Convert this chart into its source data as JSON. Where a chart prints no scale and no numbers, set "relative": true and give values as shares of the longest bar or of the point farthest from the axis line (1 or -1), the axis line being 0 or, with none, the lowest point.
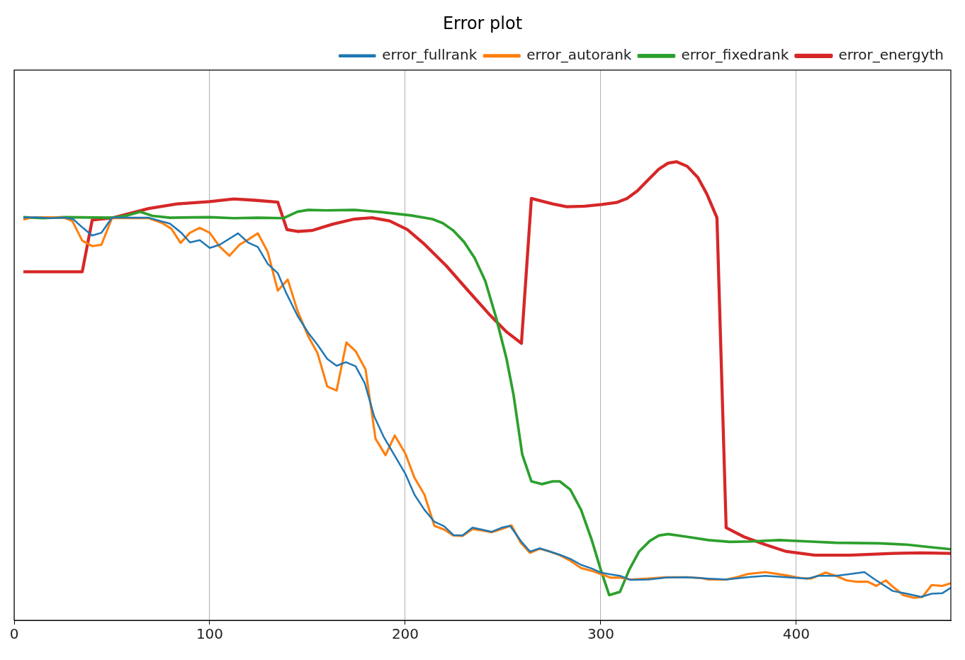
{
  "chart_data": {
    "type": "line",
    "title": "Error plot",
    "relative": true,
    "xlim": [
      0,
      479
    ],
    "xticks": [
      0,
      100,
      200,
      300,
      400
    ],
    "grid": "x",
    "legend": "top right",
    "line_style": "solid",
    "marker": "none",
    "series": [
      {
        "name": "error_fullrank",
        "color": "#1f77b4",
        "x": [
          4.7,
          10.9,
          18.1,
          25.4,
          30.1,
          35.1,
          39.9,
          44.6,
          50,
          68.8,
          79.7,
          85.5,
          89.9,
          94.9,
          100,
          105.1,
          114.5,
          119.6,
          124.6,
          129.7,
          134.8,
          139.1,
          144.9,
          150.4,
          155.1,
          160.1,
          164.9,
          169.6,
          174.6,
          179.3,
          184.1,
          189.1,
          194.9,
          200,
          204.7,
          209.8,
          214.9,
          219.9,
          224.6,
          229.3,
          234.4,
          239.1,
          244.2,
          249.3,
          253.6,
          259.1,
          263.8,
          268.8,
          273.9,
          279,
          284.4,
          289.9,
          295.3,
          300,
          305.1,
          309.8,
          315.2,
          324.3,
          333.3,
          344.2,
          351.4,
          355.1,
          364.1,
          375,
          384.1,
          394.9,
          405.8,
          411.2,
          420.3,
          427.5,
          434.8,
          440.2,
          449.3,
          456.5,
          463.8,
          469.2,
          474.6,
          479
        ],
        "values": [
          0.878,
          0.879,
          0.877,
          0.878,
          0.875,
          0.856,
          0.839,
          0.845,
          0.878,
          0.878,
          0.865,
          0.845,
          0.824,
          0.829,
          0.812,
          0.819,
          0.844,
          0.824,
          0.814,
          0.777,
          0.757,
          0.714,
          0.664,
          0.627,
          0.601,
          0.57,
          0.555,
          0.563,
          0.554,
          0.517,
          0.445,
          0.399,
          0.357,
          0.32,
          0.274,
          0.241,
          0.215,
          0.205,
          0.186,
          0.185,
          0.202,
          0.198,
          0.193,
          0.202,
          0.206,
          0.173,
          0.15,
          0.157,
          0.15,
          0.143,
          0.134,
          0.121,
          0.113,
          0.104,
          0.1,
          0.097,
          0.088,
          0.089,
          0.093,
          0.094,
          0.092,
          0.091,
          0.089,
          0.094,
          0.097,
          0.094,
          0.091,
          0.097,
          0.097,
          0.101,
          0.105,
          0.089,
          0.064,
          0.058,
          0.051,
          0.058,
          0.059,
          0.071
        ]
      },
      {
        "name": "error_autorank",
        "color": "#ff7f0e",
        "x": [
          4.7,
          9.1,
          18.1,
          25.4,
          29.7,
          34.8,
          39.9,
          44.6,
          50,
          68.8,
          75.4,
          80.4,
          85.1,
          89.9,
          94.9,
          100,
          105.1,
          110.1,
          115.2,
          120.3,
          124.6,
          129.7,
          134.8,
          139.9,
          144.9,
          150.4,
          155.1,
          160.1,
          164.9,
          169.9,
          174.6,
          179.7,
          184.8,
          189.9,
          194.6,
          200,
          204.7,
          209.8,
          214.9,
          219.9,
          224.6,
          229.3,
          234.4,
          239.1,
          244.2,
          249.3,
          254.3,
          259.1,
          263.8,
          268.8,
          273.9,
          279,
          284.4,
          289.9,
          295.3,
          300,
          305.1,
          309.8,
          315.2,
          324.3,
          333.3,
          344.2,
          351.4,
          355.1,
          364.1,
          369.6,
          375,
          384.1,
          394.9,
          402.2,
          407.6,
          414.9,
          420.3,
          425.7,
          431.2,
          436.6,
          440.9,
          445.7,
          450,
          454.7,
          460.1,
          464.5,
          469.2,
          474.6,
          479
        ],
        "values": [
          0.874,
          0.879,
          0.879,
          0.878,
          0.871,
          0.828,
          0.816,
          0.819,
          0.877,
          0.877,
          0.867,
          0.854,
          0.823,
          0.845,
          0.856,
          0.845,
          0.815,
          0.795,
          0.819,
          0.832,
          0.844,
          0.803,
          0.719,
          0.743,
          0.675,
          0.619,
          0.583,
          0.51,
          0.501,
          0.606,
          0.587,
          0.547,
          0.396,
          0.36,
          0.403,
          0.364,
          0.311,
          0.274,
          0.206,
          0.198,
          0.185,
          0.184,
          0.199,
          0.196,
          0.192,
          0.199,
          0.207,
          0.169,
          0.147,
          0.156,
          0.15,
          0.142,
          0.13,
          0.114,
          0.108,
          0.101,
          0.093,
          0.093,
          0.089,
          0.091,
          0.094,
          0.094,
          0.092,
          0.089,
          0.089,
          0.094,
          0.101,
          0.105,
          0.098,
          0.092,
          0.091,
          0.104,
          0.097,
          0.087,
          0.084,
          0.084,
          0.075,
          0.087,
          0.071,
          0.055,
          0.049,
          0.051,
          0.077,
          0.075,
          0.081
        ]
      },
      {
        "name": "error_fixedrank",
        "color": "#2ca02c",
        "x": [
          4.7,
          14.5,
          25.4,
          50.7,
          58,
          64.5,
          70.7,
          79.7,
          100,
          112.3,
          125,
          137.7,
          144.9,
          150.4,
          159.4,
          173.9,
          188.4,
          202.9,
          213.8,
          219.2,
          224.6,
          230.1,
          235.5,
          240.9,
          246.4,
          251.8,
          255.4,
          259.8,
          264.5,
          269.9,
          275.4,
          279,
          284.4,
          289.9,
          295.3,
          300,
          304.3,
          309.8,
          314.5,
          319.6,
          325,
          329.7,
          334.4,
          344.2,
          355.1,
          365.9,
          376.8,
          391.3,
          405.8,
          420.3,
          442,
          456.5,
          467.4,
          479
        ],
        "values": [
          0.879,
          0.877,
          0.879,
          0.878,
          0.883,
          0.891,
          0.882,
          0.878,
          0.879,
          0.877,
          0.878,
          0.877,
          0.891,
          0.895,
          0.894,
          0.895,
          0.89,
          0.883,
          0.875,
          0.866,
          0.85,
          0.825,
          0.79,
          0.74,
          0.661,
          0.57,
          0.491,
          0.362,
          0.303,
          0.297,
          0.303,
          0.303,
          0.285,
          0.241,
          0.176,
          0.11,
          0.055,
          0.062,
          0.11,
          0.15,
          0.173,
          0.185,
          0.188,
          0.182,
          0.175,
          0.171,
          0.172,
          0.175,
          0.172,
          0.169,
          0.168,
          0.165,
          0.16,
          0.155
        ]
      },
      {
        "name": "error_energyth",
        "color": "#d62728",
        "x": [
          4.7,
          34.8,
          39.9,
          50.7,
          68.8,
          83.3,
          100,
          112.3,
          123.2,
          134.8,
          139.5,
          144.9,
          152.2,
          163,
          173.9,
          183,
          192,
          201.1,
          210.1,
          221,
          231.9,
          242.8,
          251.8,
          259.4,
          264.5,
          275.4,
          282.6,
          291.7,
          300.7,
          308,
          313.4,
          318.8,
          324.3,
          329.7,
          334.4,
          338.8,
          344.2,
          349.6,
          354.3,
          359.4,
          364.1,
          373.2,
          384.1,
          394.9,
          409.4,
          427.5,
          449.3,
          463.8,
          479
        ],
        "values": [
          0.76,
          0.76,
          0.873,
          0.878,
          0.898,
          0.908,
          0.913,
          0.919,
          0.916,
          0.912,
          0.852,
          0.848,
          0.85,
          0.864,
          0.875,
          0.878,
          0.871,
          0.852,
          0.819,
          0.773,
          0.72,
          0.668,
          0.629,
          0.604,
          0.92,
          0.908,
          0.902,
          0.903,
          0.907,
          0.911,
          0.92,
          0.937,
          0.961,
          0.984,
          0.997,
          1,
          0.99,
          0.966,
          0.929,
          0.878,
          0.202,
          0.182,
          0.165,
          0.15,
          0.142,
          0.142,
          0.146,
          0.147,
          0.146
        ]
      }
    ]
  }
}
